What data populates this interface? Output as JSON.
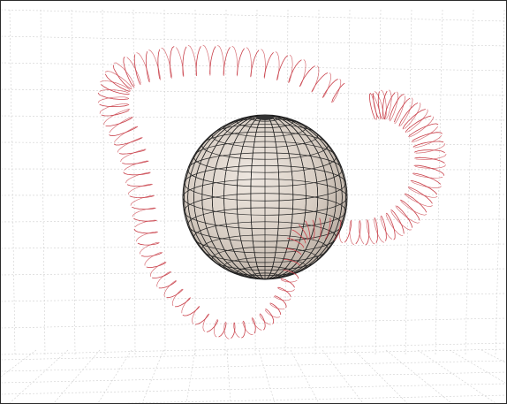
{
  "scene": {
    "description_colors": {
      "background": "#ffffff",
      "frame_border": "#2b2b2b",
      "grid_line": "#cfcfcf",
      "sphere_fill": "#dcd2c8",
      "sphere_mesh": "#222222",
      "coil": "#c9404a"
    }
  }
}
